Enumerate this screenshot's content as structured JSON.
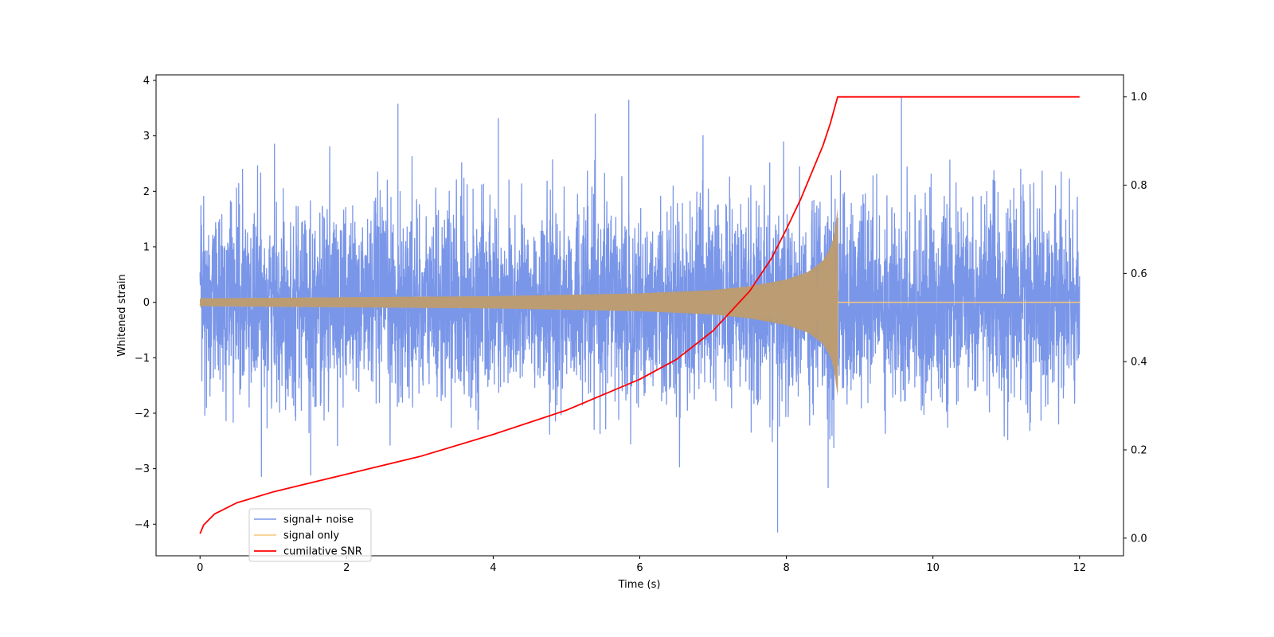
{
  "chart_data": {
    "type": "line",
    "xlabel": "Time (s)",
    "ylabel": "Whitened strain",
    "y2label": "",
    "xlim": [
      -0.6,
      12.6
    ],
    "ylim": [
      -4.57,
      4.1
    ],
    "y2lim": [
      -0.04,
      1.05
    ],
    "xticks": [
      0,
      2,
      4,
      6,
      8,
      10,
      12
    ],
    "yticks": [
      -4,
      -3,
      -2,
      -1,
      0,
      1,
      2,
      3,
      4
    ],
    "y2ticks": [
      0.0,
      0.2,
      0.4,
      0.6,
      0.8,
      1.0
    ],
    "grid": false,
    "legend_position": "lower-left",
    "series": [
      {
        "name": "signal+ noise",
        "color": "#7a96e8",
        "axis": "left",
        "description": "whitened noise plus injected chirp, noise std about 0.85",
        "x_range": [
          0,
          12
        ],
        "y_typical_range": [
          -2.4,
          2.9
        ],
        "y_extremes": [
          -4.15,
          3.7
        ]
      },
      {
        "name": "signal only",
        "color": "#f5c77a",
        "axis": "left",
        "description": "chirp with growing amplitude ending at merger",
        "merger_time": 8.7,
        "envelope": {
          "t": [
            0,
            2,
            4,
            6,
            7,
            7.5,
            8,
            8.3,
            8.5,
            8.6,
            8.65,
            8.7
          ],
          "amplitude": [
            0.07,
            0.09,
            0.11,
            0.16,
            0.22,
            0.29,
            0.41,
            0.55,
            0.75,
            0.98,
            1.2,
            1.7
          ]
        }
      },
      {
        "name": "cumilative SNR",
        "color": "#ff0000",
        "axis": "right",
        "x": [
          0,
          0.05,
          0.2,
          0.5,
          1,
          2,
          3,
          4,
          5,
          6,
          6.5,
          7,
          7.5,
          7.8,
          8,
          8.2,
          8.4,
          8.5,
          8.6,
          8.65,
          8.7,
          12
        ],
        "y": [
          0.01,
          0.03,
          0.055,
          0.08,
          0.105,
          0.145,
          0.185,
          0.235,
          0.29,
          0.36,
          0.405,
          0.47,
          0.56,
          0.635,
          0.7,
          0.77,
          0.85,
          0.89,
          0.94,
          0.97,
          1.0,
          1.0
        ]
      }
    ]
  }
}
